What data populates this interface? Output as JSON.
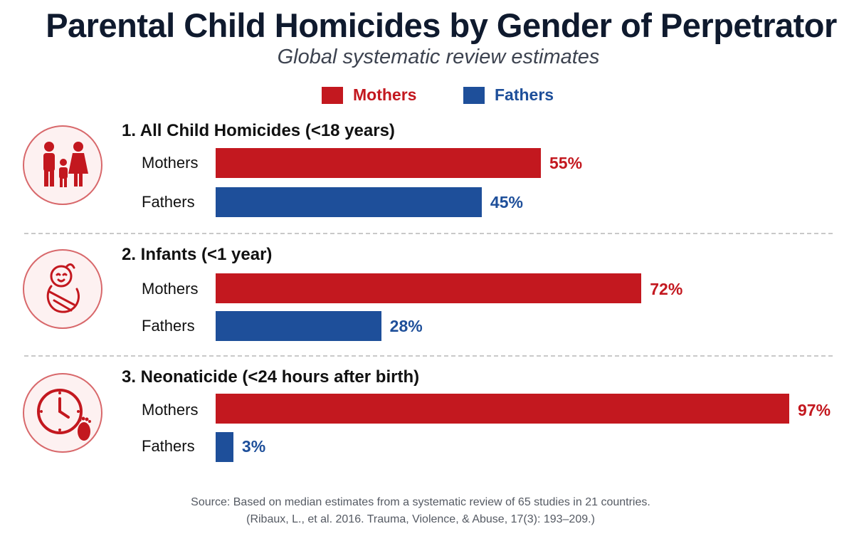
{
  "title": "Parental Child Homicides by Gender of Perpetrator",
  "subtitle": "Global systematic review estimates",
  "legend": {
    "mothers": "Mothers",
    "fathers": "Fathers"
  },
  "colors": {
    "mothers": "#c3181f",
    "fathers": "#1e4f9a"
  },
  "icons": [
    "family-icon",
    "swaddled-infant-icon",
    "clock-footprint-icon"
  ],
  "chart_data": {
    "type": "bar",
    "orientation": "horizontal",
    "unit": "%",
    "xlim": [
      0,
      100
    ],
    "grid": false,
    "legend_position": "top-center",
    "groups": [
      {
        "title": "1. All Child Homicides (<18 years)",
        "bars": [
          {
            "label": "Mothers",
            "value": 55,
            "display": "55%"
          },
          {
            "label": "Fathers",
            "value": 45,
            "display": "45%"
          }
        ]
      },
      {
        "title": "2. Infants (<1 year)",
        "bars": [
          {
            "label": "Mothers",
            "value": 72,
            "display": "72%"
          },
          {
            "label": "Fathers",
            "value": 28,
            "display": "28%"
          }
        ]
      },
      {
        "title": "3. Neonaticide (<24 hours after birth)",
        "bars": [
          {
            "label": "Mothers",
            "value": 97,
            "display": "97%"
          },
          {
            "label": "Fathers",
            "value": 3,
            "display": "3%"
          }
        ]
      }
    ]
  },
  "source": {
    "line1": "Source: Based on median estimates from a systematic review of 65 studies in 21 countries.",
    "line2": "(Ribaux, L., et al. 2016. Trauma, Violence, & Abuse, 17(3): 193–209.)"
  }
}
